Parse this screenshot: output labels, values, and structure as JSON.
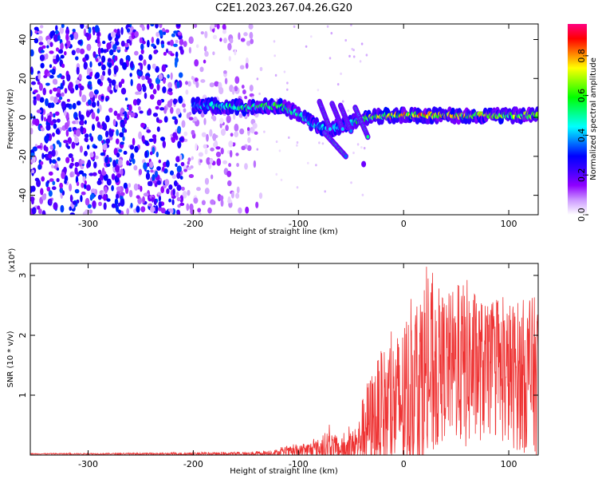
{
  "title": "C2E1.2023.267.04.26.G20",
  "chart_data": [
    {
      "type": "heatmap",
      "xlabel": "Height of straight line (km)",
      "ylabel": "Frequency (Hz)",
      "xlim": [
        -355,
        128
      ],
      "ylim": [
        -50,
        48
      ],
      "xticks": [
        -300,
        -200,
        -100,
        0,
        100
      ],
      "yticks": [
        -40,
        -20,
        0,
        20,
        40
      ],
      "colorbar": {
        "label": "Normalized spectral amplitude",
        "range": [
          0,
          0.96
        ],
        "ticks": [
          "0.0",
          "0.2",
          "0.4",
          "0.6",
          "0.8"
        ],
        "tick_values": [
          0.0,
          0.2,
          0.4,
          0.6,
          0.8
        ],
        "colors": [
          "#ffffff",
          "#cc99ff",
          "#8f00ff",
          "#4000ff",
          "#0000ff",
          "#0080ff",
          "#00ffff",
          "#00ff80",
          "#00ff00",
          "#80ff00",
          "#ffff00",
          "#ff8000",
          "#ff0000",
          "#ff0080"
        ]
      },
      "features": {
        "noise_region_x": [
          -355,
          -145
        ],
        "main_signal": [
          {
            "x": -200,
            "f": 6,
            "amp": 0.45
          },
          {
            "x": -180,
            "f": 6,
            "amp": 0.55
          },
          {
            "x": -150,
            "f": 5,
            "amp": 0.6
          },
          {
            "x": -120,
            "f": 6,
            "amp": 0.65
          },
          {
            "x": -100,
            "f": 2,
            "amp": 0.55
          },
          {
            "x": -85,
            "f": -4,
            "amp": 0.5
          },
          {
            "x": -70,
            "f": -6,
            "amp": 0.5
          },
          {
            "x": -50,
            "f": -3,
            "amp": 0.45
          },
          {
            "x": -40,
            "f": -1,
            "amp": 0.75
          },
          {
            "x": -20,
            "f": 1,
            "amp": 0.8
          },
          {
            "x": 0,
            "f": 1,
            "amp": 0.85
          },
          {
            "x": 20,
            "f": 1,
            "amp": 0.9
          },
          {
            "x": 50,
            "f": 1,
            "amp": 0.85
          },
          {
            "x": 80,
            "f": 1,
            "amp": 0.8
          },
          {
            "x": 110,
            "f": 1,
            "amp": 0.75
          },
          {
            "x": 128,
            "f": 1,
            "amp": 0.7
          }
        ],
        "descending_streaks": [
          {
            "x0": -80,
            "f0": 8,
            "x1": -70,
            "f1": -6
          },
          {
            "x0": -68,
            "f0": 7,
            "x1": -58,
            "f1": -6
          },
          {
            "x0": -60,
            "f0": 6,
            "x1": -50,
            "f1": -7
          },
          {
            "x0": -46,
            "f0": 5,
            "x1": -34,
            "f1": -10
          },
          {
            "x0": -75,
            "f0": -8,
            "x1": -55,
            "f1": -20
          }
        ],
        "isolated_blob": {
          "x": -38,
          "f": -24
        }
      }
    },
    {
      "type": "line",
      "xlabel": "Height of straight line (km)",
      "ylabel": "SNR (10 * v/v)",
      "yexponent_label": "(x10⁴)",
      "xlim": [
        -355,
        128
      ],
      "ylim": [
        0,
        3.2
      ],
      "xticks": [
        -300,
        -200,
        -100,
        0,
        100
      ],
      "yticks": [
        1,
        2,
        3
      ],
      "series": [
        {
          "color": "#ee3333",
          "envelope": [
            {
              "x": -355,
              "mean": 0.02,
              "peak": 0.03
            },
            {
              "x": -250,
              "mean": 0.02,
              "peak": 0.04
            },
            {
              "x": -150,
              "mean": 0.02,
              "peak": 0.06
            },
            {
              "x": -120,
              "mean": 0.04,
              "peak": 0.12
            },
            {
              "x": -100,
              "mean": 0.06,
              "peak": 0.2
            },
            {
              "x": -80,
              "mean": 0.1,
              "peak": 0.35
            },
            {
              "x": -72,
              "mean": 0.15,
              "peak": 0.55
            },
            {
              "x": -60,
              "mean": 0.08,
              "peak": 0.35
            },
            {
              "x": -45,
              "mean": 0.15,
              "peak": 0.6
            },
            {
              "x": -35,
              "mean": 0.5,
              "peak": 1.3
            },
            {
              "x": -20,
              "mean": 0.7,
              "peak": 1.9
            },
            {
              "x": 0,
              "mean": 0.9,
              "peak": 2.3
            },
            {
              "x": 20,
              "mean": 1.3,
              "peak": 3.2
            },
            {
              "x": 40,
              "mean": 1.5,
              "peak": 2.8
            },
            {
              "x": 60,
              "mean": 1.5,
              "peak": 3.1
            },
            {
              "x": 80,
              "mean": 1.4,
              "peak": 2.6
            },
            {
              "x": 100,
              "mean": 1.35,
              "peak": 2.7
            },
            {
              "x": 128,
              "mean": 1.3,
              "peak": 2.8
            }
          ]
        }
      ]
    }
  ]
}
